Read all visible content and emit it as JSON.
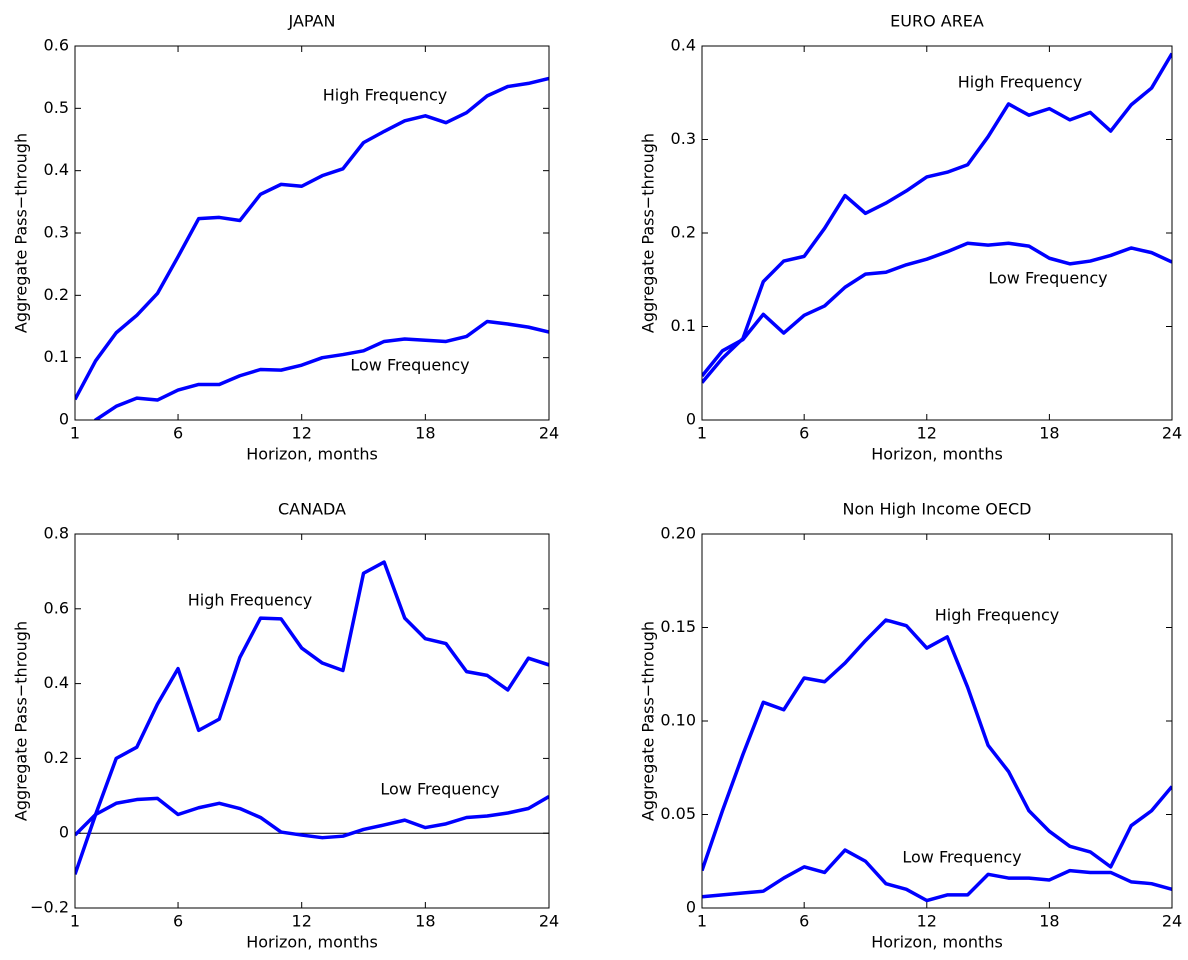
{
  "chart_data": [
    {
      "type": "line",
      "title": "JAPAN",
      "xlabel": "Horizon, months",
      "ylabel": "Aggregate Pass−through",
      "x": [
        1,
        2,
        3,
        4,
        5,
        6,
        7,
        8,
        9,
        10,
        11,
        12,
        13,
        14,
        15,
        16,
        17,
        18,
        19,
        20,
        21,
        22,
        23,
        24
      ],
      "xlim": [
        1,
        24
      ],
      "xticks": [
        1,
        6,
        12,
        18,
        24
      ],
      "ylim": [
        0,
        0.6
      ],
      "yticks": [
        0,
        0.1,
        0.2,
        0.3,
        0.4,
        0.5,
        0.6
      ],
      "series": [
        {
          "name": "High Frequency",
          "color": "#0000ff",
          "values": [
            0.033,
            0.095,
            0.14,
            0.168,
            0.203,
            0.262,
            0.323,
            0.325,
            0.32,
            0.362,
            0.378,
            0.375,
            0.392,
            0.403,
            0.445,
            0.463,
            0.48,
            0.488,
            0.477,
            0.493,
            0.52,
            0.535,
            0.54,
            0.548
          ]
        },
        {
          "name": "Low Frequency",
          "color": "#0000ff",
          "values": [
            -0.06,
            0.0,
            0.022,
            0.035,
            0.032,
            0.048,
            0.057,
            0.057,
            0.071,
            0.081,
            0.08,
            0.088,
            0.1,
            0.105,
            0.111,
            0.126,
            0.13,
            0.128,
            0.126,
            0.134,
            0.158,
            0.154,
            0.149,
            0.141
          ]
        }
      ]
    },
    {
      "type": "line",
      "title": "EURO AREA",
      "xlabel": "Horizon, months",
      "ylabel": "Aggregate Pass−through",
      "x": [
        1,
        2,
        3,
        4,
        5,
        6,
        7,
        8,
        9,
        10,
        11,
        12,
        13,
        14,
        15,
        16,
        17,
        18,
        19,
        20,
        21,
        22,
        23,
        24
      ],
      "xlim": [
        1,
        24
      ],
      "xticks": [
        1,
        6,
        12,
        18,
        24
      ],
      "ylim": [
        0,
        0.4
      ],
      "yticks": [
        0,
        0.1,
        0.2,
        0.3,
        0.4
      ],
      "series": [
        {
          "name": "High Frequency",
          "color": "#0000ff",
          "values": [
            0.04,
            0.066,
            0.087,
            0.148,
            0.17,
            0.175,
            0.205,
            0.24,
            0.221,
            0.232,
            0.245,
            0.26,
            0.265,
            0.273,
            0.303,
            0.338,
            0.326,
            0.333,
            0.321,
            0.329,
            0.309,
            0.337,
            0.355,
            0.392
          ]
        },
        {
          "name": "Low Frequency",
          "color": "#0000ff",
          "values": [
            0.047,
            0.074,
            0.086,
            0.113,
            0.093,
            0.112,
            0.122,
            0.142,
            0.156,
            0.158,
            0.166,
            0.172,
            0.18,
            0.189,
            0.187,
            0.189,
            0.186,
            0.173,
            0.167,
            0.17,
            0.176,
            0.184,
            0.179,
            0.169
          ]
        }
      ]
    },
    {
      "type": "line",
      "title": "CANADA",
      "xlabel": "Horizon, months",
      "ylabel": "Aggregate Pass−through",
      "zero_line": true,
      "x": [
        1,
        2,
        3,
        4,
        5,
        6,
        7,
        8,
        9,
        10,
        11,
        12,
        13,
        14,
        15,
        16,
        17,
        18,
        19,
        20,
        21,
        22,
        23,
        24
      ],
      "xlim": [
        1,
        24
      ],
      "xticks": [
        1,
        6,
        12,
        18,
        24
      ],
      "ylim": [
        -0.2,
        0.8
      ],
      "yticks": [
        {
          "value": -0.2,
          "label": "−0.2"
        },
        0,
        0.2,
        0.4,
        0.6,
        0.8
      ],
      "series": [
        {
          "name": "High Frequency",
          "color": "#0000ff",
          "values": [
            -0.11,
            0.05,
            0.2,
            0.23,
            0.345,
            0.44,
            0.275,
            0.305,
            0.47,
            0.575,
            0.573,
            0.495,
            0.455,
            0.435,
            0.695,
            0.725,
            0.575,
            0.52,
            0.507,
            0.432,
            0.422,
            0.383,
            0.468,
            0.45
          ]
        },
        {
          "name": "Low Frequency",
          "color": "#0000ff",
          "values": [
            -0.005,
            0.05,
            0.08,
            0.09,
            0.093,
            0.05,
            0.068,
            0.08,
            0.066,
            0.042,
            0.003,
            -0.005,
            -0.012,
            -0.008,
            0.01,
            0.022,
            0.035,
            0.015,
            0.025,
            0.042,
            0.046,
            0.054,
            0.066,
            0.098
          ]
        }
      ]
    },
    {
      "type": "line",
      "title": "Non High Income OECD",
      "xlabel": "Horizon, months",
      "ylabel": "Aggregate Pass−through",
      "x": [
        1,
        2,
        3,
        4,
        5,
        6,
        7,
        8,
        9,
        10,
        11,
        12,
        13,
        14,
        15,
        16,
        17,
        18,
        19,
        20,
        21,
        22,
        23,
        24
      ],
      "xlim": [
        1,
        24
      ],
      "xticks": [
        1,
        6,
        12,
        18,
        24
      ],
      "ylim": [
        0,
        0.2
      ],
      "yticks": [
        0,
        0.05,
        {
          "value": 0.1,
          "label": "0.10"
        },
        0.15,
        {
          "value": 0.2,
          "label": "0.20"
        }
      ],
      "series": [
        {
          "name": "High Frequency",
          "color": "#0000ff",
          "values": [
            0.02,
            0.052,
            0.082,
            0.11,
            0.106,
            0.123,
            0.121,
            0.131,
            0.143,
            0.154,
            0.151,
            0.139,
            0.145,
            0.118,
            0.087,
            0.073,
            0.052,
            0.041,
            0.033,
            0.03,
            0.022,
            0.044,
            0.052,
            0.065
          ]
        },
        {
          "name": "Low Frequency",
          "color": "#0000ff",
          "values": [
            0.006,
            0.007,
            0.008,
            0.009,
            0.016,
            0.022,
            0.019,
            0.031,
            0.025,
            0.013,
            0.01,
            0.004,
            0.007,
            0.007,
            0.018,
            0.016,
            0.016,
            0.015,
            0.02,
            0.019,
            0.019,
            0.014,
            0.013,
            0.01
          ]
        }
      ]
    }
  ]
}
